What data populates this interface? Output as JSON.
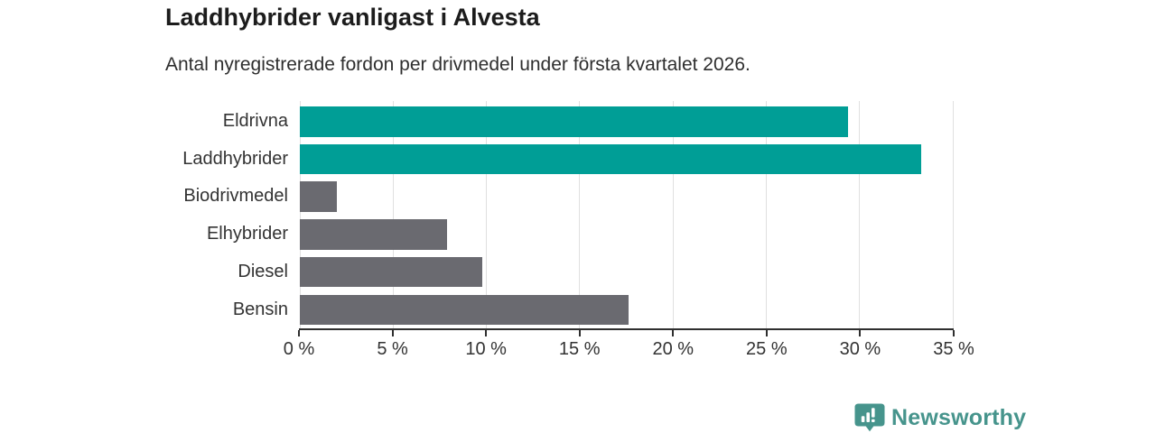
{
  "header": {
    "title": "Laddhybrider vanligast i Alvesta",
    "subtitle": "Antal nyregistrerade fordon per drivmedel under första kvartalet 2026."
  },
  "chart_data": {
    "type": "bar",
    "orientation": "horizontal",
    "title": "Laddhybrider vanligast i Alvesta",
    "subtitle": "Antal nyregistrerade fordon per drivmedel under första kvartalet 2026.",
    "categories": [
      "Eldrivna",
      "Laddhybrider",
      "Biodrivmedel",
      "Elhybrider",
      "Diesel",
      "Bensin"
    ],
    "values": [
      29.4,
      33.3,
      2.0,
      7.9,
      9.8,
      17.6
    ],
    "unit": "%",
    "xlim": [
      0,
      35
    ],
    "x_ticks": [
      0,
      5,
      10,
      15,
      20,
      25,
      30,
      35
    ],
    "x_tick_labels": [
      "0 %",
      "5 %",
      "10 %",
      "15 %",
      "20 %",
      "25 %",
      "30 %",
      "35 %"
    ],
    "bar_colors": [
      "#009E96",
      "#009E96",
      "#6A6A70",
      "#6A6A70",
      "#6A6A70",
      "#6A6A70"
    ],
    "highlight_color": "#009E96",
    "default_color": "#6A6A70",
    "grid": true,
    "legend": false
  },
  "footer": {
    "brand": "Newsworthy",
    "brand_color": "#46948C",
    "logo_icon": "newsworthy-bar-chart-bubble-icon"
  }
}
